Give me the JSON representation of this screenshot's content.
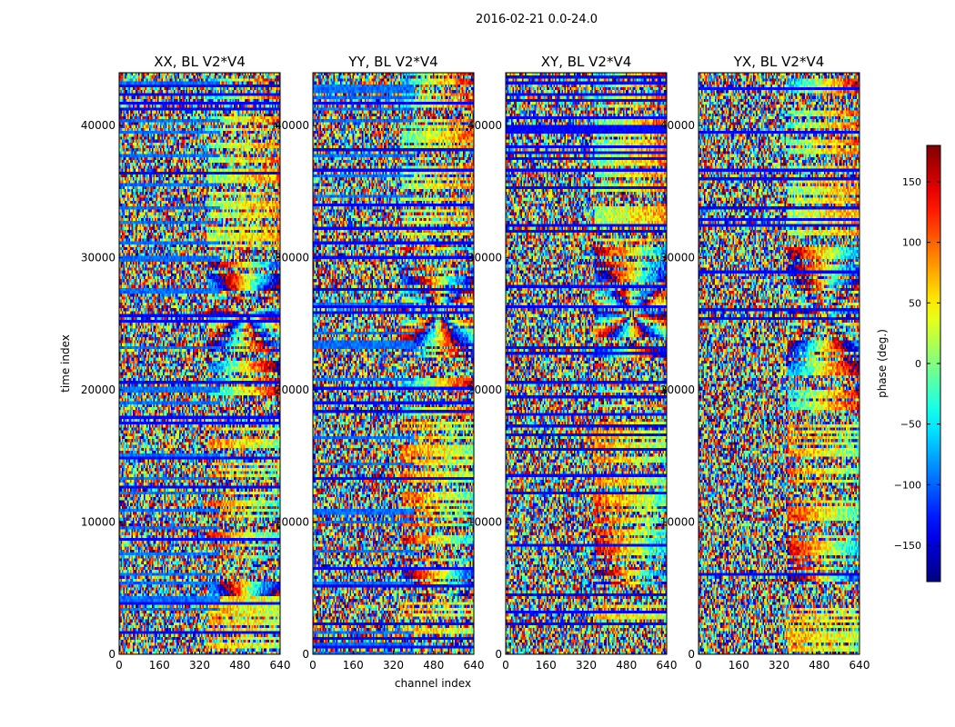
{
  "figure": {
    "suptitle": "2016-02-21 0.0-24.0"
  },
  "chart_data": {
    "type": "heatmap",
    "colormap": "jet",
    "xlabel": "channel index",
    "ylabel": "time index",
    "xlim": [
      0,
      640
    ],
    "ylim": [
      0,
      44000
    ],
    "xticks": [
      0,
      160,
      320,
      480,
      640
    ],
    "yticks": [
      0,
      10000,
      20000,
      30000,
      40000
    ],
    "panels": [
      {
        "title": "XX, BL V2*V4"
      },
      {
        "title": "YY, BL V2*V4"
      },
      {
        "title": "XY, BL V2*V4"
      },
      {
        "title": "YX, BL V2*V4"
      }
    ],
    "colorbar": {
      "label": "phase (deg.)",
      "range": [
        -180,
        180
      ],
      "ticks": [
        -150,
        -100,
        -50,
        0,
        50,
        100,
        150
      ],
      "tick_labels": [
        "−150",
        "−100",
        "−50",
        "0",
        "50",
        "100",
        "150"
      ]
    }
  }
}
